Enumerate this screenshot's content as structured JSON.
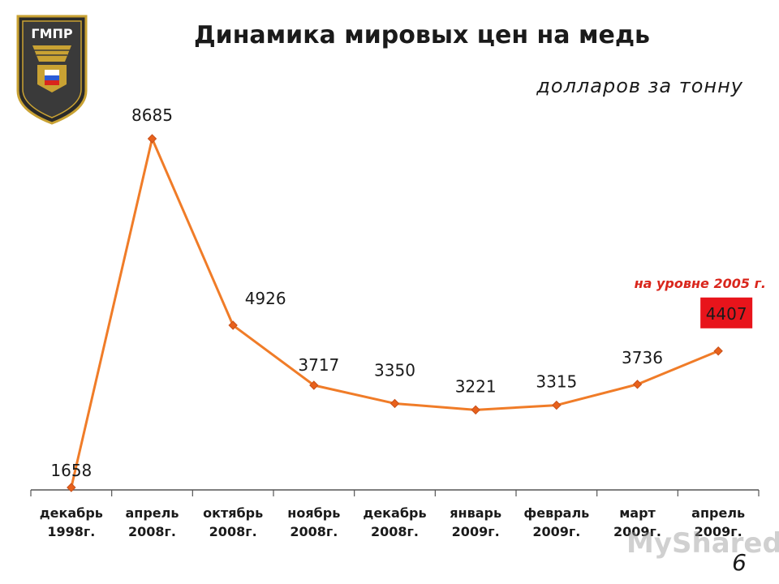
{
  "logo": {
    "text": "ГМПР"
  },
  "header": {
    "title": "Динамика мировых цен на медь",
    "unit": "долларов за тонну"
  },
  "annotation": {
    "note": "на уровне 2005 г.",
    "highlight_color": "#e8141b"
  },
  "page_number": "6",
  "watermark": "MyShared",
  "chart_data": {
    "type": "line",
    "title": "Динамика мировых цен на медь",
    "ylabel": "долларов за тонну",
    "categories": [
      [
        "декабрь",
        "1998г."
      ],
      [
        "апрель",
        "2008г."
      ],
      [
        "октябрь",
        "2008г."
      ],
      [
        "ноябрь",
        "2008г."
      ],
      [
        "декабрь",
        "2008г."
      ],
      [
        "январь",
        "2009г."
      ],
      [
        "февраль",
        "2009г."
      ],
      [
        "март",
        "2009г."
      ],
      [
        "апрель",
        "2009г."
      ]
    ],
    "values": [
      1658,
      8685,
      4926,
      3717,
      3350,
      3221,
      3315,
      3736,
      4407
    ],
    "ylim": [
      1600,
      9000
    ],
    "grid": false,
    "line_color": "#f07c28",
    "marker_color": "#e8611b",
    "highlight_index": 8
  }
}
